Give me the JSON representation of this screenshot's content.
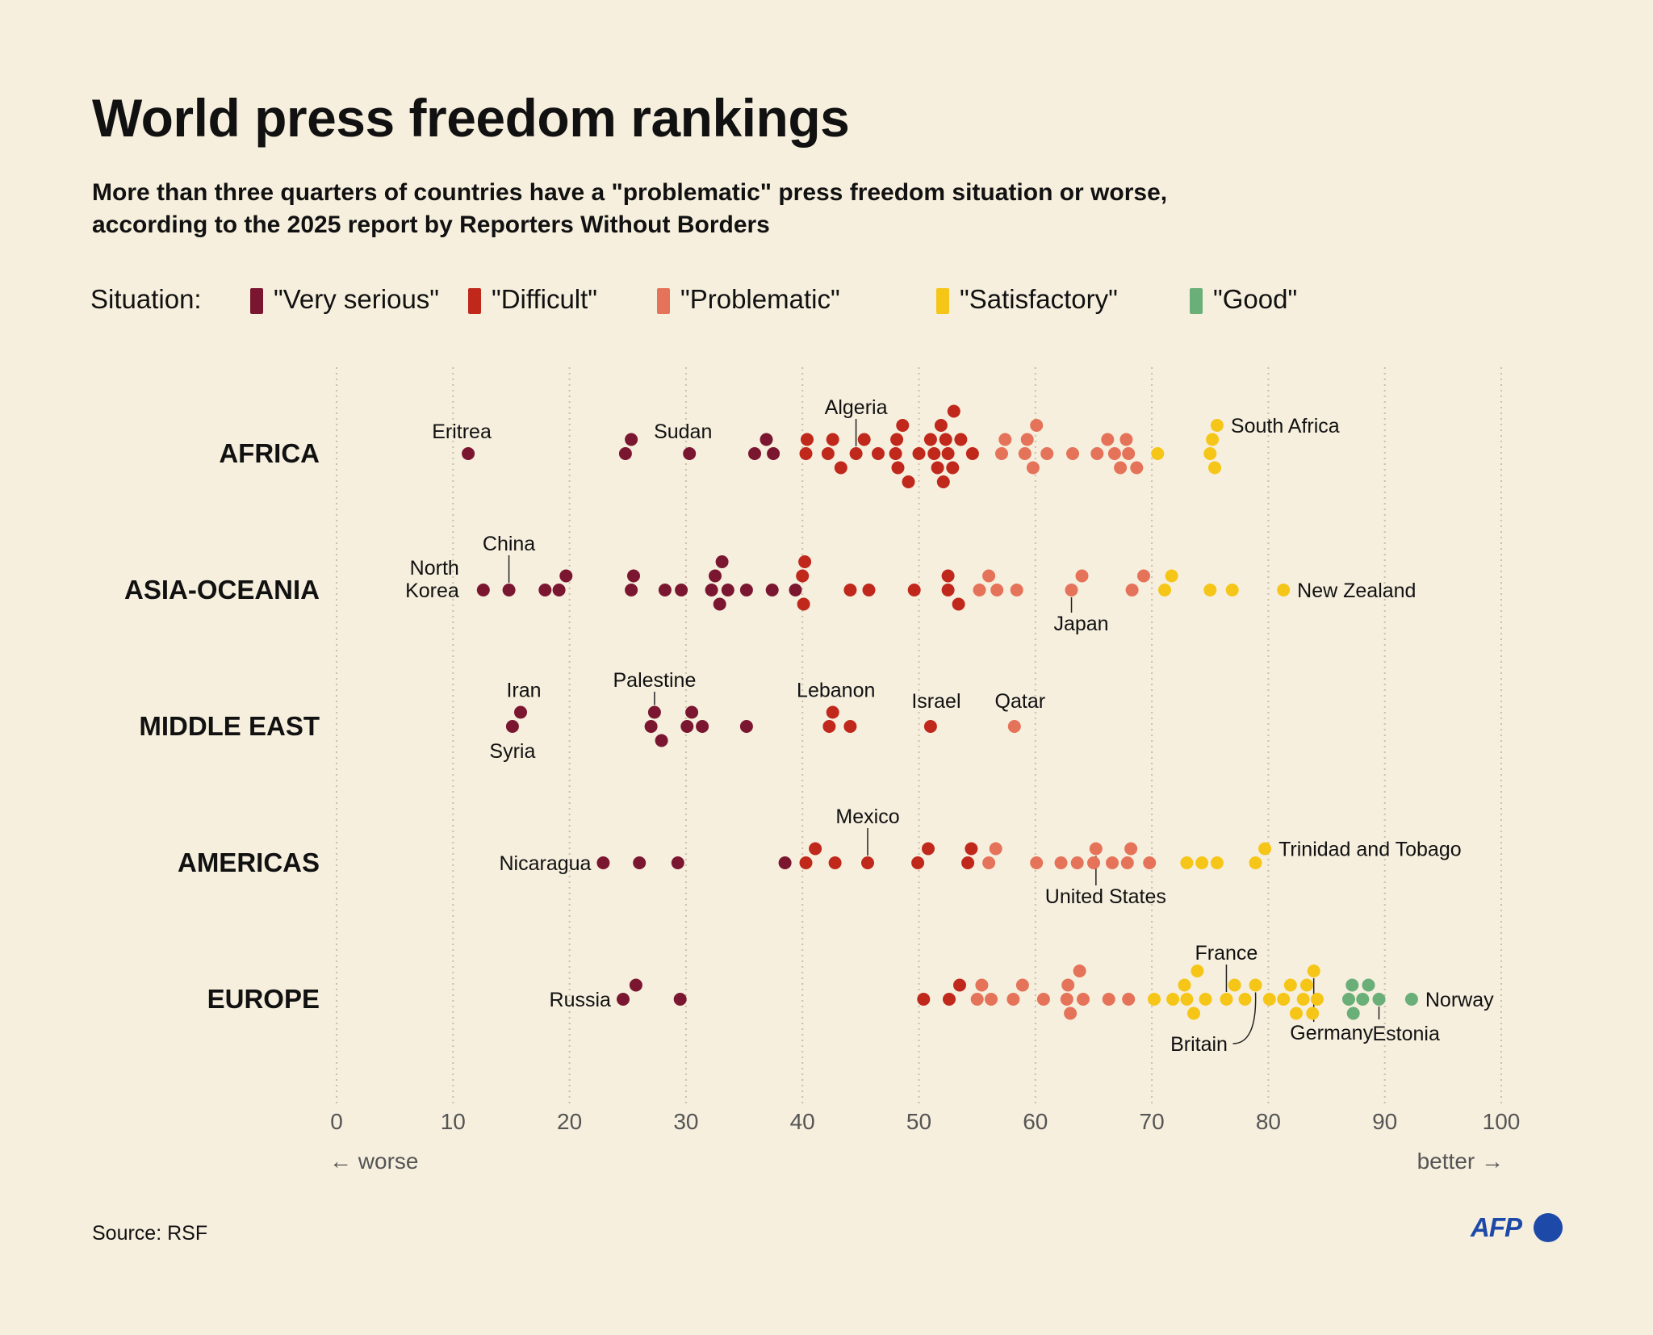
{
  "title": "World press freedom rankings",
  "subtitle_line1": "More than three quarters of countries have a \"problematic\" press freedom situation or worse,",
  "subtitle_line2": "according to the 2025 report by Reporters Without Borders",
  "legend": {
    "label": "Situation:",
    "items": [
      {
        "label": "\"Very serious\"",
        "color": "#7b1631"
      },
      {
        "label": "\"Difficult\"",
        "color": "#c0281c"
      },
      {
        "label": "\"Problematic\"",
        "color": "#e5735a"
      },
      {
        "label": "\"Satisfactory\"",
        "color": "#f5c618"
      },
      {
        "label": "\"Good\"",
        "color": "#6aae78"
      }
    ]
  },
  "source": "Source: RSF",
  "logo": "AFP",
  "chart_data": {
    "type": "scatter",
    "xlim": [
      0,
      100
    ],
    "x_ticks": [
      0,
      10,
      20,
      30,
      40,
      50,
      60,
      70,
      80,
      90,
      100
    ],
    "x_hint_left": "← worse",
    "x_hint_right": "better →",
    "grid": true,
    "situation_colors": {
      "very_serious": "#7b1631",
      "difficult": "#c0281c",
      "problematic": "#e5735a",
      "satisfactory": "#f5c618",
      "good": "#6aae78"
    },
    "regions": [
      {
        "name": "AFRICA",
        "scores": [
          11.3,
          24.8,
          25.3,
          30.3,
          35.9,
          36.9,
          37.5,
          40.3,
          40.4,
          42.2,
          42.6,
          43.3,
          44.6,
          45.3,
          46.5,
          48.0,
          48.1,
          48.2,
          48.6,
          49.1,
          50.0,
          51.0,
          51.3,
          51.6,
          51.9,
          52.1,
          52.3,
          52.5,
          52.9,
          53.0,
          53.6,
          54.6,
          57.1,
          57.4,
          59.1,
          59.3,
          59.8,
          60.1,
          61.0,
          63.2,
          65.3,
          66.2,
          66.8,
          67.3,
          67.8,
          68.0,
          68.7,
          70.5,
          75.0,
          75.2,
          75.4,
          75.6
        ],
        "labels": [
          {
            "country": "Eritrea",
            "score": 11.3
          },
          {
            "country": "Sudan",
            "score": 30.3
          },
          {
            "country": "Algeria",
            "score": 44.6
          },
          {
            "country": "South Africa",
            "score": 75.6
          }
        ]
      },
      {
        "name": "ASIA-OCEANIA",
        "scores": [
          12.6,
          14.8,
          17.9,
          19.1,
          19.7,
          25.3,
          25.5,
          28.2,
          29.6,
          32.2,
          32.5,
          32.9,
          33.1,
          33.6,
          35.2,
          37.4,
          39.4,
          40.0,
          40.1,
          40.2,
          44.1,
          45.7,
          49.6,
          52.5,
          52.5,
          53.4,
          55.2,
          56.0,
          56.7,
          58.4,
          63.1,
          64.0,
          68.3,
          69.3,
          71.1,
          71.7,
          75.0,
          76.9,
          81.3
        ],
        "labels": [
          {
            "country": "North Korea",
            "score": 12.6
          },
          {
            "country": "China",
            "score": 14.8
          },
          {
            "country": "Japan",
            "score": 63.1
          },
          {
            "country": "New Zealand",
            "score": 81.3
          }
        ]
      },
      {
        "name": "MIDDLE EAST",
        "scores": [
          15.1,
          15.8,
          27.0,
          27.3,
          27.9,
          30.1,
          30.5,
          31.4,
          35.2,
          42.3,
          42.6,
          44.1,
          51.0,
          58.2
        ],
        "labels": [
          {
            "country": "Iran",
            "score": 15.8
          },
          {
            "country": "Syria",
            "score": 15.1
          },
          {
            "country": "Palestine",
            "score": 27.3
          },
          {
            "country": "Lebanon",
            "score": 42.6
          },
          {
            "country": "Israel",
            "score": 51.0
          },
          {
            "country": "Qatar",
            "score": 58.2
          }
        ]
      },
      {
        "name": "AMERICAS",
        "scores": [
          22.9,
          26.0,
          29.3,
          38.5,
          40.3,
          41.1,
          42.8,
          45.6,
          49.9,
          50.8,
          54.2,
          54.5,
          56.0,
          56.6,
          60.1,
          62.2,
          63.6,
          65.0,
          65.2,
          66.6,
          67.9,
          68.2,
          69.8,
          73.0,
          74.3,
          75.6,
          78.9,
          79.7
        ],
        "labels": [
          {
            "country": "Nicaragua",
            "score": 22.9
          },
          {
            "country": "Mexico",
            "score": 45.6
          },
          {
            "country": "United States",
            "score": 65.2
          },
          {
            "country": "Trinidad and Tobago",
            "score": 79.7
          }
        ]
      },
      {
        "name": "EUROPE",
        "scores": [
          24.6,
          25.7,
          29.5,
          50.4,
          52.6,
          53.5,
          55.0,
          55.4,
          56.2,
          58.1,
          58.9,
          60.7,
          62.7,
          62.8,
          63.0,
          63.8,
          64.1,
          66.3,
          68.0,
          70.2,
          71.8,
          72.8,
          73.0,
          73.6,
          73.9,
          74.6,
          76.4,
          77.1,
          78.0,
          78.9,
          80.1,
          81.3,
          81.9,
          82.4,
          83.0,
          83.3,
          83.8,
          83.9,
          84.2,
          86.9,
          87.2,
          87.3,
          88.1,
          88.6,
          89.5,
          92.3
        ],
        "labels": [
          {
            "country": "Russia",
            "score": 24.6
          },
          {
            "country": "France",
            "score": 76.4
          },
          {
            "country": "Britain",
            "score": 78.9
          },
          {
            "country": "Germany",
            "score": 83.9
          },
          {
            "country": "Estonia",
            "score": 89.5
          },
          {
            "country": "Norway",
            "score": 92.3
          }
        ]
      }
    ]
  }
}
